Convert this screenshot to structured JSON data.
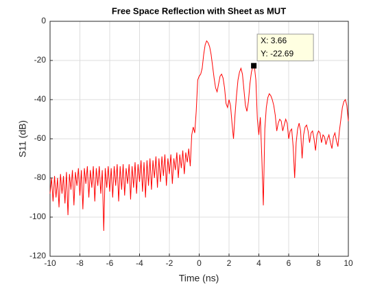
{
  "chart_data": {
    "type": "line",
    "title": "Free Space Reflection with Sheet as MUT",
    "xlabel": "Time (ns)",
    "ylabel": "S11 (dB)",
    "color": "#ff0000",
    "grid": true,
    "xlim": [
      -10,
      10
    ],
    "ylim": [
      -120,
      0
    ],
    "xticks": [
      -10,
      -8,
      -6,
      -4,
      -2,
      0,
      2,
      4,
      6,
      8,
      10
    ],
    "yticks": [
      -120,
      -100,
      -80,
      -60,
      -40,
      -20,
      0
    ],
    "x": [
      -10.0,
      -9.9,
      -9.8,
      -9.7,
      -9.6,
      -9.5,
      -9.4,
      -9.3,
      -9.2,
      -9.1,
      -9.0,
      -8.9,
      -8.8,
      -8.7,
      -8.6,
      -8.5,
      -8.4,
      -8.3,
      -8.2,
      -8.1,
      -8.0,
      -7.9,
      -7.8,
      -7.7,
      -7.6,
      -7.5,
      -7.4,
      -7.3,
      -7.2,
      -7.1,
      -7.0,
      -6.9,
      -6.8,
      -6.7,
      -6.6,
      -6.5,
      -6.4,
      -6.3,
      -6.2,
      -6.1,
      -6.0,
      -5.9,
      -5.8,
      -5.7,
      -5.6,
      -5.5,
      -5.4,
      -5.3,
      -5.2,
      -5.1,
      -5.0,
      -4.9,
      -4.8,
      -4.7,
      -4.6,
      -4.5,
      -4.4,
      -4.3,
      -4.2,
      -4.1,
      -4.0,
      -3.9,
      -3.8,
      -3.7,
      -3.6,
      -3.5,
      -3.4,
      -3.3,
      -3.2,
      -3.1,
      -3.0,
      -2.9,
      -2.8,
      -2.7,
      -2.6,
      -2.5,
      -2.4,
      -2.3,
      -2.2,
      -2.1,
      -2.0,
      -1.9,
      -1.8,
      -1.7,
      -1.6,
      -1.5,
      -1.4,
      -1.3,
      -1.2,
      -1.1,
      -1.0,
      -0.9,
      -0.8,
      -0.7,
      -0.6,
      -0.5,
      -0.4,
      -0.3,
      -0.2,
      -0.1,
      0.0,
      0.1,
      0.2,
      0.3,
      0.4,
      0.5,
      0.6,
      0.7,
      0.8,
      0.9,
      1.0,
      1.1,
      1.2,
      1.3,
      1.4,
      1.5,
      1.6,
      1.7,
      1.8,
      1.9,
      2.0,
      2.1,
      2.2,
      2.3,
      2.4,
      2.5,
      2.6,
      2.7,
      2.8,
      2.9,
      3.0,
      3.1,
      3.2,
      3.3,
      3.4,
      3.5,
      3.6,
      3.7,
      3.8,
      3.9,
      4.0,
      4.1,
      4.2,
      4.3,
      4.4,
      4.5,
      4.6,
      4.7,
      4.8,
      4.9,
      5.0,
      5.1,
      5.2,
      5.3,
      5.4,
      5.5,
      5.6,
      5.7,
      5.8,
      5.9,
      6.0,
      6.1,
      6.2,
      6.3,
      6.4,
      6.5,
      6.6,
      6.7,
      6.8,
      6.9,
      7.0,
      7.1,
      7.2,
      7.3,
      7.4,
      7.5,
      7.6,
      7.7,
      7.8,
      7.9,
      8.0,
      8.1,
      8.2,
      8.3,
      8.4,
      8.5,
      8.6,
      8.7,
      8.8,
      8.9,
      9.0,
      9.1,
      9.2,
      9.3,
      9.4,
      9.5,
      9.6,
      9.7,
      9.8,
      9.9,
      10.0
    ],
    "values": [
      -88,
      -80,
      -92,
      -79,
      -90,
      -80,
      -95,
      -78,
      -88,
      -79,
      -93,
      -77,
      -99,
      -78,
      -86,
      -76,
      -94,
      -77,
      -84,
      -75,
      -89,
      -76,
      -96,
      -75,
      -83,
      -74,
      -90,
      -76,
      -85,
      -74,
      -92,
      -75,
      -84,
      -74,
      -88,
      -76,
      -107,
      -75,
      -85,
      -74,
      -87,
      -75,
      -90,
      -74,
      -84,
      -73,
      -92,
      -74,
      -86,
      -73,
      -89,
      -75,
      -83,
      -73,
      -91,
      -74,
      -85,
      -72,
      -88,
      -73,
      -82,
      -71,
      -87,
      -72,
      -90,
      -71,
      -84,
      -70,
      -86,
      -71,
      -80,
      -69,
      -85,
      -70,
      -82,
      -69,
      -79,
      -68,
      -84,
      -70,
      -78,
      -68,
      -83,
      -70,
      -76,
      -67,
      -80,
      -68,
      -75,
      -66,
      -78,
      -67,
      -72,
      -65,
      -74,
      -58,
      -54,
      -57,
      -46,
      -30,
      -28,
      -27,
      -24,
      -17,
      -12,
      -10,
      -11,
      -13,
      -17,
      -23,
      -29,
      -34,
      -36,
      -32,
      -28,
      -27,
      -29,
      -34,
      -42,
      -44,
      -40,
      -43,
      -52,
      -60,
      -48,
      -38,
      -30,
      -26,
      -24,
      -27,
      -35,
      -43,
      -46,
      -41,
      -32,
      -26,
      -23,
      -23,
      -30,
      -50,
      -58,
      -49,
      -70,
      -94,
      -55,
      -44,
      -39,
      -37,
      -38,
      -40,
      -43,
      -48,
      -56,
      -52,
      -50,
      -51,
      -56,
      -53,
      -50,
      -52,
      -60,
      -56,
      -55,
      -64,
      -80,
      -62,
      -55,
      -52,
      -56,
      -70,
      -58,
      -54,
      -53,
      -56,
      -62,
      -57,
      -56,
      -60,
      -66,
      -58,
      -56,
      -57,
      -62,
      -58,
      -59,
      -63,
      -60,
      -58,
      -62,
      -65,
      -59,
      -57,
      -61,
      -64,
      -56,
      -50,
      -44,
      -41,
      -40,
      -43,
      -51
    ],
    "datatip": {
      "x": 3.66,
      "y": -22.69,
      "labels": [
        "X: 3.66",
        "Y: -22.69"
      ]
    }
  }
}
